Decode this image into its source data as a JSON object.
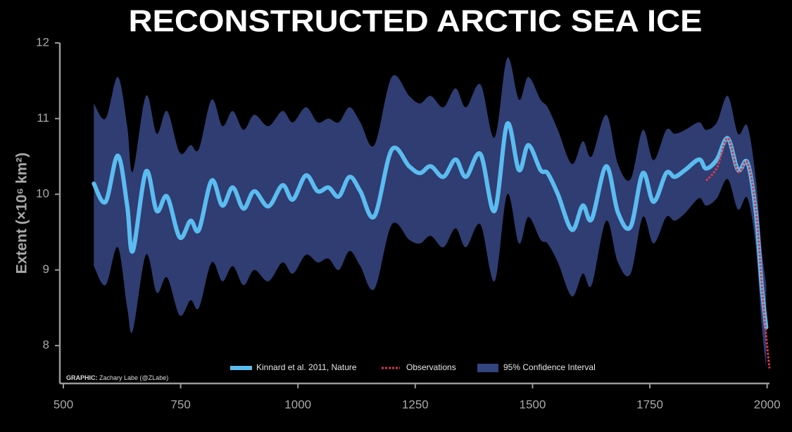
{
  "chart_data": {
    "type": "line",
    "title": "RECONSTRUCTED ARCTIC SEA ICE",
    "y_label": "Extent (×10⁶ km²)",
    "credit": {
      "label": "GRAPHIC:",
      "text": "Zachary Labe (@ZLabe)"
    },
    "xlim": [
      500,
      2005
    ],
    "xticks": [
      500,
      750,
      1000,
      1250,
      1500,
      1750,
      2000
    ],
    "ylim": [
      7.5,
      12
    ],
    "yticks": [
      8,
      9,
      10,
      11,
      12
    ],
    "x": [
      565,
      590,
      616,
      636,
      648,
      676,
      699,
      721,
      748,
      771,
      789,
      816,
      839,
      861,
      884,
      907,
      937,
      967,
      989,
      1017,
      1042,
      1065,
      1087,
      1110,
      1133,
      1163,
      1200,
      1237,
      1260,
      1283,
      1310,
      1336,
      1358,
      1389,
      1419,
      1446,
      1471,
      1491,
      1517,
      1532,
      1554,
      1584,
      1607,
      1626,
      1657,
      1682,
      1709,
      1735,
      1758,
      1785,
      1803,
      1825,
      1855,
      1870,
      1893,
      1916,
      1938,
      1958,
      1976,
      1988,
      1998
    ],
    "series": [
      {
        "name": "Kinnard et al. 2011, Nature",
        "color": "#5bbcf0",
        "values": [
          10.14,
          9.9,
          10.51,
          9.85,
          9.25,
          10.3,
          9.78,
          9.97,
          9.43,
          9.65,
          9.53,
          10.18,
          9.85,
          10.09,
          9.81,
          10.04,
          9.84,
          10.12,
          9.93,
          10.25,
          10.04,
          10.09,
          9.97,
          10.23,
          10.04,
          9.71,
          10.59,
          10.37,
          10.28,
          10.37,
          10.23,
          10.46,
          10.23,
          10.53,
          9.78,
          10.93,
          10.32,
          10.65,
          10.32,
          10.28,
          10.0,
          9.53,
          9.85,
          9.67,
          10.37,
          9.76,
          9.57,
          10.28,
          9.9,
          10.28,
          10.23,
          10.32,
          10.46,
          10.34,
          10.46,
          10.74,
          10.32,
          10.42,
          9.76,
          8.82,
          8.24
        ]
      },
      {
        "name": "Observations",
        "color": "#d8394c",
        "dashed": true,
        "x": [
          1870,
          1893,
          1916,
          1938,
          1958,
          1976,
          1990,
          2000,
          2005
        ],
        "values": [
          10.18,
          10.35,
          10.74,
          10.3,
          10.42,
          9.8,
          8.7,
          8.0,
          7.7
        ]
      }
    ],
    "band": {
      "name": "95% Confidence Interval",
      "color": "#34447e",
      "upper": [
        11.2,
        11.0,
        11.55,
        10.9,
        10.3,
        11.3,
        10.8,
        11.1,
        10.55,
        10.65,
        10.6,
        11.25,
        10.9,
        11.1,
        10.85,
        11.05,
        10.9,
        11.1,
        10.95,
        11.15,
        10.95,
        11.0,
        10.95,
        11.15,
        10.95,
        10.65,
        11.55,
        11.3,
        11.2,
        11.3,
        11.15,
        11.4,
        11.15,
        11.45,
        10.75,
        11.8,
        11.25,
        11.55,
        11.25,
        11.15,
        10.85,
        10.4,
        10.7,
        10.5,
        11.05,
        10.4,
        10.2,
        10.85,
        10.45,
        10.85,
        10.8,
        10.85,
        10.95,
        10.85,
        10.95,
        11.3,
        10.8,
        10.9,
        10.2,
        9.3,
        8.8
      ],
      "lower": [
        9.05,
        8.8,
        9.3,
        8.5,
        8.2,
        9.2,
        8.7,
        8.9,
        8.4,
        8.6,
        8.5,
        9.1,
        8.85,
        9.05,
        8.8,
        9.0,
        8.85,
        9.1,
        8.95,
        9.2,
        9.1,
        9.15,
        9.0,
        9.25,
        9.05,
        8.75,
        9.6,
        9.4,
        9.35,
        9.45,
        9.3,
        9.55,
        9.3,
        9.6,
        8.85,
        10.0,
        9.35,
        9.7,
        9.4,
        9.35,
        9.1,
        8.65,
        8.95,
        8.8,
        9.65,
        9.1,
        8.95,
        9.7,
        9.35,
        9.7,
        9.65,
        9.75,
        9.95,
        9.85,
        9.95,
        10.2,
        9.8,
        9.95,
        9.3,
        8.3,
        7.7
      ]
    }
  }
}
